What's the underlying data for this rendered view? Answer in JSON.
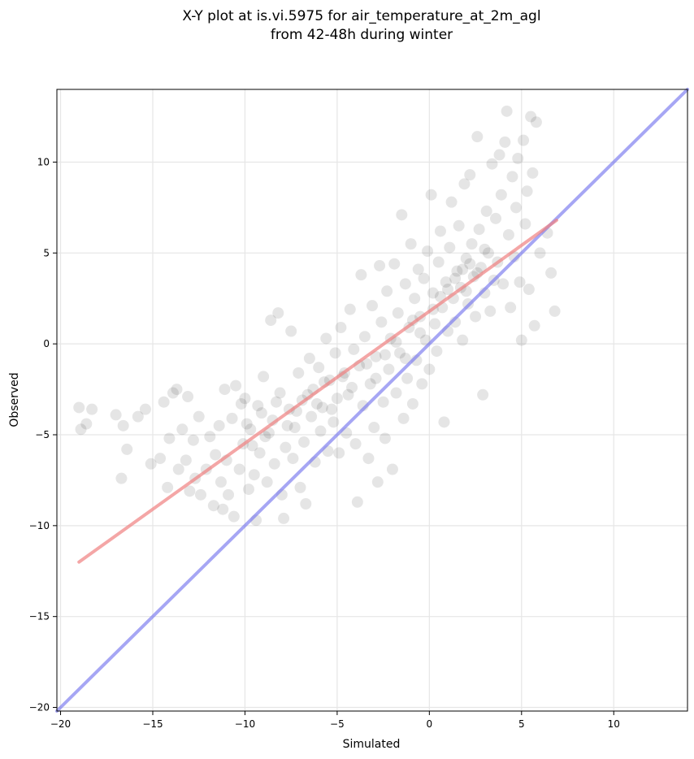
{
  "chart_data": {
    "type": "scatter",
    "title": [
      "X-Y plot at is.vi.5975 for air_temperature_at_2m_agl",
      "from 42-48h during winter"
    ],
    "xlabel": "Simulated",
    "ylabel": "Observed",
    "xlim": [
      -20.2,
      14.0
    ],
    "ylim": [
      -20.2,
      14.0
    ],
    "xticks": [
      -20,
      -15,
      -10,
      -5,
      0,
      5,
      10
    ],
    "xtick_labels": [
      "−20",
      "−15",
      "−10",
      "−5",
      "0",
      "5",
      "10"
    ],
    "yticks": [
      -20,
      -15,
      -10,
      -5,
      0,
      5,
      10
    ],
    "ytick_labels": [
      "−20",
      "−15",
      "−10",
      "−5",
      "0",
      "5",
      "10"
    ],
    "grid": true,
    "point_color": "#000000",
    "point_alpha": 0.1,
    "series": [
      {
        "points": [
          [
            -19.0,
            -3.5
          ],
          [
            -18.9,
            -4.7
          ],
          [
            -18.6,
            -4.4
          ],
          [
            -18.3,
            -3.6
          ],
          [
            -17.0,
            -3.9
          ],
          [
            -16.7,
            -7.4
          ],
          [
            -16.6,
            -4.5
          ],
          [
            -16.4,
            -5.8
          ],
          [
            -15.8,
            -4.0
          ],
          [
            -15.4,
            -3.6
          ],
          [
            -15.1,
            -6.6
          ],
          [
            -14.6,
            -6.3
          ],
          [
            -14.4,
            -3.2
          ],
          [
            -14.2,
            -7.9
          ],
          [
            -14.1,
            -5.2
          ],
          [
            -13.9,
            -2.7
          ],
          [
            -13.7,
            -2.5
          ],
          [
            -13.6,
            -6.9
          ],
          [
            -13.4,
            -4.7
          ],
          [
            -13.2,
            -6.4
          ],
          [
            -13.1,
            -2.9
          ],
          [
            -13.0,
            -8.1
          ],
          [
            -12.8,
            -5.3
          ],
          [
            -12.7,
            -7.4
          ],
          [
            -12.5,
            -4.0
          ],
          [
            -12.4,
            -8.3
          ],
          [
            -12.1,
            -6.9
          ],
          [
            -11.9,
            -5.1
          ],
          [
            -11.7,
            -8.9
          ],
          [
            -11.6,
            -6.1
          ],
          [
            -11.4,
            -4.5
          ],
          [
            -11.3,
            -7.6
          ],
          [
            -11.2,
            -9.1
          ],
          [
            -11.1,
            -2.5
          ],
          [
            -11.0,
            -6.4
          ],
          [
            -10.9,
            -8.3
          ],
          [
            -10.7,
            -4.1
          ],
          [
            -10.6,
            -9.5
          ],
          [
            -10.5,
            -2.3
          ],
          [
            -10.3,
            -6.9
          ],
          [
            -10.1,
            -5.5
          ],
          [
            -10.0,
            -3.0
          ],
          [
            -9.8,
            -8.0
          ],
          [
            -9.7,
            -4.7
          ],
          [
            -9.5,
            -7.2
          ],
          [
            -9.4,
            -9.7
          ],
          [
            -9.3,
            -3.4
          ],
          [
            -9.2,
            -6.0
          ],
          [
            -9.0,
            -1.8
          ],
          [
            -8.9,
            -5.1
          ],
          [
            -8.8,
            -7.6
          ],
          [
            -8.6,
            1.3
          ],
          [
            -8.5,
            -4.2
          ],
          [
            -8.4,
            -6.6
          ],
          [
            -8.2,
            1.7
          ],
          [
            -8.1,
            -2.7
          ],
          [
            -8.0,
            -8.3
          ],
          [
            -7.9,
            -9.6
          ],
          [
            -7.8,
            -5.7
          ],
          [
            -7.6,
            -3.6
          ],
          [
            -7.5,
            0.7
          ],
          [
            -7.4,
            -6.3
          ],
          [
            -7.3,
            -4.6
          ],
          [
            -7.1,
            -1.6
          ],
          [
            -7.0,
            -7.9
          ],
          [
            -6.9,
            -3.1
          ],
          [
            -6.8,
            -5.4
          ],
          [
            -6.7,
            -8.8
          ],
          [
            -6.5,
            -0.8
          ],
          [
            -6.4,
            -4.0
          ],
          [
            -6.3,
            -2.5
          ],
          [
            -6.2,
            -6.5
          ],
          [
            -6.0,
            -1.3
          ],
          [
            -5.9,
            -4.8
          ],
          [
            -5.8,
            -3.5
          ],
          [
            -5.6,
            0.3
          ],
          [
            -5.5,
            -5.9
          ],
          [
            -5.4,
            -2.0
          ],
          [
            -5.2,
            -4.3
          ],
          [
            -5.1,
            -0.5
          ],
          [
            -5.0,
            -3.0
          ],
          [
            -4.9,
            -6.0
          ],
          [
            -4.8,
            0.9
          ],
          [
            -4.6,
            -1.6
          ],
          [
            -4.5,
            -4.9
          ],
          [
            -4.4,
            -2.8
          ],
          [
            -4.3,
            1.9
          ],
          [
            -4.1,
            -0.3
          ],
          [
            -4.0,
            -5.5
          ],
          [
            -3.9,
            -8.7
          ],
          [
            -3.8,
            -1.2
          ],
          [
            -3.7,
            3.8
          ],
          [
            -3.6,
            -3.4
          ],
          [
            -3.5,
            0.4
          ],
          [
            -3.3,
            -6.3
          ],
          [
            -3.2,
            -2.2
          ],
          [
            -3.1,
            2.1
          ],
          [
            -3.0,
            -4.6
          ],
          [
            -2.9,
            -0.7
          ],
          [
            -2.8,
            -7.6
          ],
          [
            -2.7,
            4.3
          ],
          [
            -2.6,
            1.2
          ],
          [
            -2.5,
            -3.2
          ],
          [
            -2.4,
            -5.2
          ],
          [
            -2.3,
            2.9
          ],
          [
            -2.2,
            -1.4
          ],
          [
            -2.1,
            0.3
          ],
          [
            -2.0,
            -6.9
          ],
          [
            -1.9,
            4.4
          ],
          [
            -1.8,
            -2.7
          ],
          [
            -1.7,
            1.7
          ],
          [
            -1.6,
            -0.5
          ],
          [
            -1.5,
            7.1
          ],
          [
            -1.4,
            -4.1
          ],
          [
            -1.3,
            3.3
          ],
          [
            -1.2,
            -1.9
          ],
          [
            -1.1,
            0.9
          ],
          [
            -1.0,
            5.5
          ],
          [
            -0.9,
            -3.3
          ],
          [
            -0.8,
            2.5
          ],
          [
            -0.7,
            -0.9
          ],
          [
            -0.6,
            4.1
          ],
          [
            -0.5,
            1.5
          ],
          [
            -0.4,
            -2.2
          ],
          [
            -0.3,
            3.6
          ],
          [
            -0.2,
            0.2
          ],
          [
            -0.1,
            5.1
          ],
          [
            0.0,
            -1.4
          ],
          [
            0.1,
            8.2
          ],
          [
            0.2,
            2.8
          ],
          [
            0.3,
            1.1
          ],
          [
            0.4,
            -0.4
          ],
          [
            0.5,
            4.5
          ],
          [
            0.6,
            6.2
          ],
          [
            0.7,
            2.0
          ],
          [
            0.8,
            -4.3
          ],
          [
            0.9,
            3.4
          ],
          [
            1.0,
            0.7
          ],
          [
            1.1,
            5.3
          ],
          [
            1.2,
            7.8
          ],
          [
            1.3,
            2.5
          ],
          [
            1.4,
            1.2
          ],
          [
            1.5,
            4.0
          ],
          [
            1.6,
            6.5
          ],
          [
            1.7,
            3.1
          ],
          [
            1.8,
            0.2
          ],
          [
            1.9,
            8.8
          ],
          [
            2.0,
            4.7
          ],
          [
            2.1,
            2.2
          ],
          [
            2.2,
            9.3
          ],
          [
            2.3,
            5.5
          ],
          [
            2.4,
            3.7
          ],
          [
            2.5,
            1.5
          ],
          [
            2.6,
            11.4
          ],
          [
            2.7,
            6.3
          ],
          [
            2.8,
            4.2
          ],
          [
            2.9,
            -2.8
          ],
          [
            3.0,
            2.8
          ],
          [
            3.1,
            7.3
          ],
          [
            3.2,
            5.0
          ],
          [
            3.3,
            1.8
          ],
          [
            3.4,
            9.9
          ],
          [
            3.5,
            3.5
          ],
          [
            3.6,
            6.9
          ],
          [
            3.7,
            4.5
          ],
          [
            3.8,
            10.4
          ],
          [
            3.9,
            8.2
          ],
          [
            4.0,
            3.3
          ],
          [
            4.1,
            11.1
          ],
          [
            4.2,
            12.8
          ],
          [
            4.3,
            6.0
          ],
          [
            4.4,
            2.0
          ],
          [
            4.5,
            9.2
          ],
          [
            4.6,
            4.8
          ],
          [
            4.7,
            7.5
          ],
          [
            4.8,
            10.2
          ],
          [
            4.9,
            3.4
          ],
          [
            5.0,
            0.2
          ],
          [
            5.1,
            11.2
          ],
          [
            5.2,
            6.6
          ],
          [
            5.3,
            8.4
          ],
          [
            5.4,
            3.0
          ],
          [
            5.5,
            12.5
          ],
          [
            5.6,
            9.4
          ],
          [
            5.7,
            1.0
          ],
          [
            5.8,
            12.2
          ],
          [
            6.0,
            5.0
          ],
          [
            6.4,
            6.1
          ],
          [
            6.6,
            3.9
          ],
          [
            6.8,
            1.8
          ],
          [
            -10.2,
            -3.3
          ],
          [
            -9.9,
            -4.4
          ],
          [
            -9.6,
            -5.6
          ],
          [
            -9.1,
            -3.8
          ],
          [
            -8.7,
            -4.9
          ],
          [
            -8.3,
            -3.2
          ],
          [
            -7.7,
            -4.5
          ],
          [
            -7.2,
            -3.7
          ],
          [
            -6.6,
            -2.8
          ],
          [
            -6.1,
            -3.3
          ],
          [
            -5.7,
            -2.1
          ],
          [
            -5.3,
            -3.6
          ],
          [
            -4.7,
            -1.8
          ],
          [
            -4.2,
            -2.4
          ],
          [
            -3.4,
            -1.1
          ],
          [
            -2.9,
            -1.9
          ],
          [
            -2.4,
            -0.6
          ],
          [
            -1.8,
            0.1
          ],
          [
            -1.3,
            -0.8
          ],
          [
            -0.9,
            1.3
          ],
          [
            -0.5,
            0.6
          ],
          [
            0.2,
            1.9
          ],
          [
            0.6,
            2.6
          ],
          [
            1.0,
            3.0
          ],
          [
            1.4,
            3.6
          ],
          [
            1.8,
            4.1
          ],
          [
            2.2,
            4.4
          ],
          [
            2.6,
            3.9
          ],
          [
            3.0,
            5.2
          ],
          [
            2.0,
            2.9
          ]
        ]
      }
    ],
    "fit_line": {
      "x": [
        -19.0,
        6.9
      ],
      "y": [
        -12.0,
        6.8
      ],
      "color": "#f08080"
    },
    "identity_line": {
      "x": [
        -20.2,
        14.0
      ],
      "y": [
        -20.2,
        14.0
      ],
      "color": "#7777ee"
    }
  }
}
